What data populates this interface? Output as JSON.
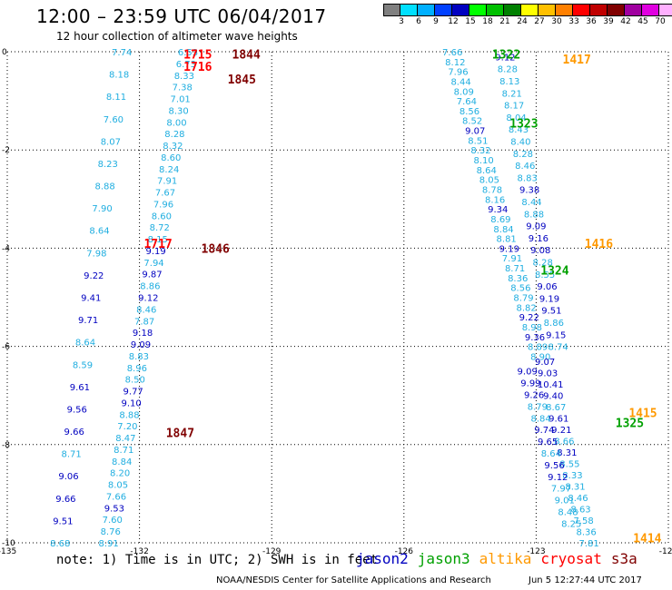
{
  "header": {
    "title": "12:00 – 23:59 UTC 06/04/2017",
    "subtitle": "12 hour collection of altimeter wave heights"
  },
  "scale": {
    "colors": [
      "#808080",
      "#00e0ff",
      "#00b0ff",
      "#0040ff",
      "#0000c0",
      "#00ff00",
      "#00c000",
      "#008000",
      "#ffff00",
      "#ffc000",
      "#ff8000",
      "#ff0000",
      "#c00000",
      "#800000",
      "#a000a0",
      "#e000e0",
      "#ffb0ff",
      "#000000"
    ],
    "labels": [
      "3",
      "6",
      "9",
      "12",
      "15",
      "18",
      "21",
      "24",
      "27",
      "30",
      "33",
      "36",
      "39",
      "42",
      "45",
      "70",
      "(ft)"
    ]
  },
  "chart_data": {
    "type": "scatter",
    "title": "12:00 – 23:59 UTC 06/04/2017",
    "subtitle": "12 hour collection of altimeter wave heights",
    "xlim": [
      -135,
      -120
    ],
    "ylim": [
      -10,
      0
    ],
    "x_ticks": [
      -135,
      -132,
      -129,
      -126,
      -123,
      -120
    ],
    "x_tick_labels": [
      "-135",
      "-132",
      "-129",
      "-126",
      "-123",
      "-120"
    ],
    "y_ticks": [
      0,
      -2,
      -4,
      -6,
      -8,
      -10
    ],
    "y_tick_labels": [
      "0",
      "-2",
      "-4",
      "-6",
      "-8",
      "-10"
    ],
    "grid": true,
    "series_colors": {
      "jason2": "#0000c0",
      "jason3": "#00a000",
      "altika": "#ff9900",
      "cryosat": "#ff0000",
      "s3a": "#800000",
      "light": "#20aee0"
    },
    "tracks": [
      {
        "x0": -132.4,
        "y0": 0.0,
        "x1": -133.8,
        "y1": -10.0,
        "values": [
          "7.74",
          "8.18",
          "8.11",
          "7.60",
          "8.07",
          "8.23",
          "8.88",
          "7.90",
          "8.64",
          "7.98",
          "9.22",
          "9.41",
          "9.71",
          "8.64",
          "8.59",
          "9.61",
          "9.56",
          "9.66",
          "8.71",
          "9.06",
          "9.66",
          "9.51",
          "8.68"
        ],
        "colors": [
          "light",
          "light",
          "light",
          "light",
          "light",
          "light",
          "light",
          "light",
          "light",
          "light",
          "jason2",
          "jason2",
          "jason2",
          "light",
          "light",
          "jason2",
          "jason2",
          "jason2",
          "light",
          "jason2",
          "jason2",
          "jason2",
          "light"
        ]
      },
      {
        "x0": -130.9,
        "y0": 0.0,
        "x1": -132.7,
        "y1": -10.0,
        "values": [
          "6.53",
          "6.73",
          "8.33",
          "7.38",
          "7.01",
          "8.30",
          "8.00",
          "8.28",
          "8.32",
          "8.60",
          "8.24",
          "7.91",
          "7.67",
          "7.96",
          "8.60",
          "8.72",
          "8.15",
          "9.19",
          "7.94",
          "9.87",
          "8.86",
          "9.12",
          "8.46",
          "7.87",
          "9.18",
          "9.09",
          "8.83",
          "8.96",
          "8.50",
          "9.77",
          "9.10",
          "8.88",
          "7.20",
          "8.47",
          "8.71",
          "8.84",
          "8.20",
          "8.05",
          "7.66",
          "9.53",
          "7.60",
          "8.76",
          "8.91"
        ],
        "colors": [
          "light",
          "light",
          "light",
          "light",
          "light",
          "light",
          "light",
          "light",
          "light",
          "light",
          "light",
          "light",
          "light",
          "light",
          "light",
          "light",
          "light",
          "jason2",
          "light",
          "jason2",
          "light",
          "jason2",
          "light",
          "light",
          "jason2",
          "jason2",
          "light",
          "light",
          "light",
          "jason2",
          "jason2",
          "light",
          "light",
          "light",
          "light",
          "light",
          "light",
          "light",
          "light",
          "jason2",
          "light",
          "light",
          "light"
        ]
      },
      {
        "x0": -124.9,
        "y0": 0.0,
        "x1": -122.9,
        "y1": -6.2,
        "values": [
          "7.66",
          "8.12",
          "7.96",
          "8.44",
          "8.09",
          "7.64",
          "8.56",
          "8.52",
          "9.07",
          "8.51",
          "8.32",
          "8.10",
          "8.64",
          "8.05",
          "8.78",
          "8.16",
          "9.34",
          "8.69",
          "8.84",
          "8.81",
          "9.19",
          "7.91",
          "8.71",
          "8.36",
          "8.56",
          "8.79",
          "8.82",
          "9.22",
          "8.98",
          "9.36",
          "8.89",
          "8.90"
        ],
        "colors": [
          "light",
          "light",
          "light",
          "light",
          "light",
          "light",
          "light",
          "light",
          "jason2",
          "light",
          "light",
          "light",
          "light",
          "light",
          "light",
          "light",
          "jason2",
          "light",
          "light",
          "light",
          "jason2",
          "light",
          "light",
          "light",
          "light",
          "light",
          "light",
          "jason2",
          "light",
          "jason2",
          "light",
          "light"
        ]
      },
      {
        "x0": -123.7,
        "y0": -0.1,
        "x1": -122.5,
        "y1": -6.0,
        "values": [
          "9.12",
          "8.28",
          "8.13",
          "8.21",
          "8.17",
          "8.04",
          "8.43",
          "8.40",
          "8.28",
          "8.46",
          "8.83",
          "9.38",
          "8.44",
          "8.88",
          "9.09",
          "9.16",
          "9.08",
          "8.28",
          "8.55",
          "9.06",
          "9.19",
          "9.51",
          "8.86",
          "9.15",
          "8.74"
        ],
        "colors": [
          "jason2",
          "light",
          "light",
          "light",
          "light",
          "light",
          "light",
          "light",
          "light",
          "light",
          "light",
          "jason2",
          "light",
          "light",
          "jason2",
          "jason2",
          "jason2",
          "light",
          "light",
          "jason2",
          "jason2",
          "jason2",
          "light",
          "jason2",
          "light"
        ]
      },
      {
        "x0": -122.8,
        "y0": -6.3,
        "x1": -121.8,
        "y1": -10.0,
        "values": [
          "9.07",
          "9.03",
          "10.41",
          "9.40",
          "8.67",
          "9.61",
          "9.21",
          "8.66",
          "8.31",
          "8.55",
          "8.33",
          "8.31",
          "8.46",
          "8.63",
          "7.58",
          "8.36",
          "7.81"
        ],
        "colors": [
          "jason2",
          "jason2",
          "jason2",
          "jason2",
          "light",
          "jason2",
          "jason2",
          "light",
          "jason2",
          "light",
          "light",
          "light",
          "light",
          "light",
          "light",
          "light",
          "light"
        ]
      },
      {
        "x0": -123.2,
        "y0": -6.5,
        "x1": -122.2,
        "y1": -9.6,
        "values": [
          "9.09",
          "9.99",
          "9.26",
          "8.79",
          "8.84",
          "9.74",
          "9.65",
          "8.64",
          "9.56",
          "9.12",
          "7.97",
          "9.01",
          "8.48",
          "8.25"
        ],
        "colors": [
          "jason2",
          "jason2",
          "jason2",
          "light",
          "light",
          "jason2",
          "jason2",
          "light",
          "jason2",
          "jason2",
          "light",
          "light",
          "light",
          "light"
        ]
      }
    ],
    "time_labels": [
      {
        "text": "1715",
        "x": -131.0,
        "y": -0.05,
        "series": "cryosat"
      },
      {
        "text": "1844",
        "x": -129.9,
        "y": -0.05,
        "series": "s3a"
      },
      {
        "text": "1716",
        "x": -131.0,
        "y": -0.3,
        "series": "cryosat"
      },
      {
        "text": "1845",
        "x": -130.0,
        "y": -0.55,
        "series": "s3a"
      },
      {
        "text": "1717",
        "x": -131.9,
        "y": -3.9,
        "series": "cryosat"
      },
      {
        "text": "1846",
        "x": -130.6,
        "y": -4.0,
        "series": "s3a"
      },
      {
        "text": "1847",
        "x": -131.4,
        "y": -7.75,
        "series": "s3a"
      },
      {
        "text": "1322",
        "x": -124.0,
        "y": -0.05,
        "series": "jason3"
      },
      {
        "text": "1417",
        "x": -122.4,
        "y": -0.15,
        "series": "altika"
      },
      {
        "text": "1323",
        "x": -123.6,
        "y": -1.45,
        "series": "jason3"
      },
      {
        "text": "1416",
        "x": -121.9,
        "y": -3.9,
        "series": "altika"
      },
      {
        "text": "1324",
        "x": -122.9,
        "y": -4.45,
        "series": "jason3"
      },
      {
        "text": "1415",
        "x": -120.9,
        "y": -7.35,
        "series": "altika"
      },
      {
        "text": "1325",
        "x": -121.2,
        "y": -7.55,
        "series": "jason3"
      },
      {
        "text": "1414",
        "x": -120.8,
        "y": -9.9,
        "series": "altika"
      }
    ]
  },
  "footer": {
    "note": "note: 1) Time is in UTC; 2) SWH is in feet",
    "legend": [
      {
        "label": "jason2",
        "color": "#0000c0"
      },
      {
        "label": "jason3",
        "color": "#00a000"
      },
      {
        "label": "altika",
        "color": "#ff9900"
      },
      {
        "label": "cryosat",
        "color": "#ff0000"
      },
      {
        "label": "s3a",
        "color": "#800000"
      }
    ],
    "credit": "NOAA/NESDIS Center for Satellite Applications and Research",
    "timestamp": "Jun  5 12:27:44 UTC 2017"
  }
}
